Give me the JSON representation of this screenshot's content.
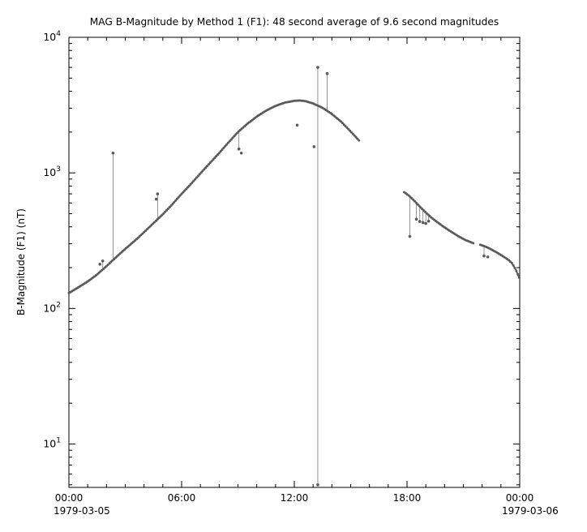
{
  "window": {
    "background": "#ffffff"
  },
  "chart_data": {
    "type": "scatter",
    "title": "MAG  B-Magnitude by Method 1 (F1): 48 second average of 9.6 second magnitudes",
    "xlabel": "",
    "ylabel": "B-Magnitude (F1) (nT)",
    "grid": false,
    "legend": "none",
    "series_color": "#5a5a5a",
    "axis_color": "#000000",
    "x_axis": {
      "start_label": "1979-03-05",
      "end_label": "1979-03-06",
      "range_hours": [
        0,
        24
      ],
      "minor_tick_every_hours": 1,
      "major_ticks": [
        {
          "t": 0,
          "label": "00:00"
        },
        {
          "t": 6,
          "label": "06:00"
        },
        {
          "t": 12,
          "label": "12:00"
        },
        {
          "t": 18,
          "label": "18:00"
        },
        {
          "t": 24,
          "label": "00:00"
        }
      ]
    },
    "y_axis": {
      "scale": "log",
      "unit": "nT",
      "log_range": [
        0.68,
        4
      ],
      "major_tick_exponents": [
        1,
        2,
        3,
        4
      ]
    },
    "segments": [
      {
        "name": "pre-gap-curve",
        "points": [
          [
            0,
            130
          ],
          [
            0.5,
            143
          ],
          [
            1,
            158
          ],
          [
            1.5,
            178
          ],
          [
            2,
            205
          ],
          [
            2.5,
            238
          ],
          [
            3,
            275
          ],
          [
            3.5,
            315
          ],
          [
            4,
            365
          ],
          [
            4.5,
            425
          ],
          [
            5,
            495
          ],
          [
            5.5,
            585
          ],
          [
            6,
            700
          ],
          [
            6.5,
            830
          ],
          [
            7,
            990
          ],
          [
            7.5,
            1180
          ],
          [
            8,
            1400
          ],
          [
            8.5,
            1680
          ],
          [
            9,
            2000
          ],
          [
            9.5,
            2300
          ],
          [
            10,
            2600
          ],
          [
            10.5,
            2880
          ],
          [
            11,
            3120
          ],
          [
            11.5,
            3300
          ],
          [
            12,
            3400
          ],
          [
            12.3,
            3420
          ],
          [
            12.6,
            3380
          ],
          [
            13,
            3250
          ],
          [
            13.5,
            3020
          ],
          [
            14,
            2720
          ],
          [
            14.5,
            2380
          ],
          [
            15,
            2020
          ],
          [
            15.5,
            1700
          ]
        ]
      },
      {
        "name": "post-gap-curve",
        "points": [
          [
            17.85,
            720
          ],
          [
            18.1,
            680
          ],
          [
            18.4,
            620
          ],
          [
            18.7,
            560
          ],
          [
            19,
            510
          ],
          [
            19.3,
            468
          ],
          [
            19.6,
            434
          ],
          [
            19.9,
            405
          ],
          [
            20.2,
            380
          ],
          [
            20.5,
            357
          ],
          [
            20.8,
            337
          ],
          [
            21.1,
            320
          ],
          [
            21.4,
            308
          ],
          [
            21.55,
            302
          ]
        ]
      },
      {
        "name": "final-curve",
        "points": [
          [
            21.9,
            295
          ],
          [
            22.2,
            285
          ],
          [
            22.5,
            272
          ],
          [
            22.8,
            258
          ],
          [
            23.1,
            243
          ],
          [
            23.4,
            228
          ],
          [
            23.6,
            215
          ],
          [
            23.8,
            192
          ],
          [
            24,
            166
          ]
        ]
      }
    ],
    "outliers": [
      {
        "t": 1.65,
        "v": 212,
        "line": false
      },
      {
        "t": 1.8,
        "v": 224,
        "line": true
      },
      {
        "t": 2.35,
        "v": 1400,
        "line": true
      },
      {
        "t": 4.65,
        "v": 640,
        "line": false
      },
      {
        "t": 4.72,
        "v": 700,
        "line": true
      },
      {
        "t": 9.05,
        "v": 1500,
        "line": true
      },
      {
        "t": 9.18,
        "v": 1400,
        "line": false
      },
      {
        "t": 12.15,
        "v": 2250,
        "line": false
      },
      {
        "t": 13.05,
        "v": 1560,
        "line": false
      },
      {
        "t": 13.25,
        "v": 6000,
        "line": true
      },
      {
        "t": 13.25,
        "v": 5,
        "line": true
      },
      {
        "t": 13.75,
        "v": 5400,
        "line": true
      },
      {
        "t": 18.15,
        "v": 340,
        "line": true
      },
      {
        "t": 18.5,
        "v": 455,
        "line": true
      },
      {
        "t": 18.68,
        "v": 438,
        "line": true
      },
      {
        "t": 18.85,
        "v": 430,
        "line": true
      },
      {
        "t": 19.0,
        "v": 423,
        "line": true
      },
      {
        "t": 19.15,
        "v": 440,
        "line": true
      },
      {
        "t": 22.1,
        "v": 244,
        "line": true
      },
      {
        "t": 22.3,
        "v": 240,
        "line": false
      }
    ]
  }
}
